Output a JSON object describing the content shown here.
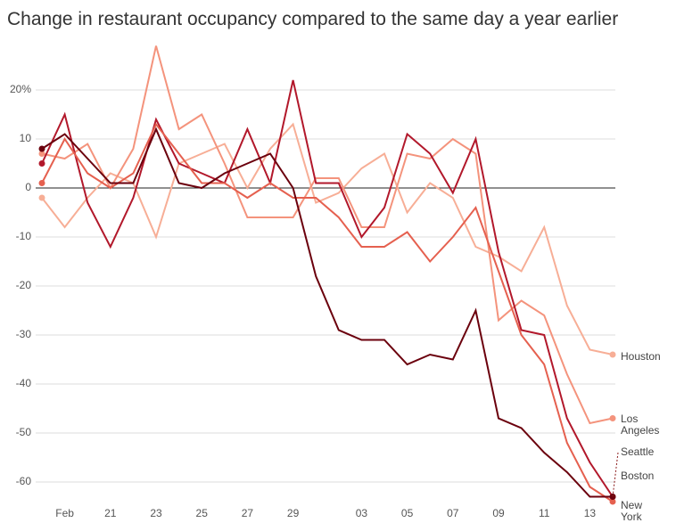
{
  "chart_data": {
    "type": "line",
    "title": "Change in restaurant occupancy compared to the same day a year earlier",
    "categories": [
      null,
      "Feb",
      null,
      "21",
      null,
      "23",
      null,
      "25",
      null,
      "27",
      null,
      "29",
      null,
      null,
      "03",
      null,
      "05",
      null,
      "07",
      null,
      "09",
      null,
      "11",
      null,
      "13",
      null
    ],
    "series": [
      {
        "name": "Houston",
        "color": "#f7ae96",
        "values": [
          -2,
          -8,
          -2,
          3,
          1,
          -10,
          5,
          7,
          9,
          0,
          8,
          13,
          -3,
          -1,
          4,
          7,
          -5,
          1,
          -2,
          -12,
          -14,
          -17,
          -8,
          -24,
          -33,
          -34
        ]
      },
      {
        "name": "Los Angeles",
        "color": "#f4937c",
        "values": [
          7,
          6,
          9,
          0,
          8,
          29,
          12,
          15,
          5,
          -6,
          -6,
          -6,
          2,
          2,
          -8,
          -8,
          7,
          6,
          10,
          7,
          -27,
          -23,
          -26,
          -38,
          -48,
          -47
        ]
      },
      {
        "name": "Seattle",
        "color": "#b2182b",
        "values": [
          5,
          15,
          -3,
          -12,
          -2,
          14,
          5,
          3,
          1,
          12,
          1,
          22,
          1,
          1,
          -10,
          -4,
          11,
          7,
          -1,
          10,
          -13,
          -29,
          -30,
          -47,
          -56,
          -63
        ]
      },
      {
        "name": "Boston",
        "color": "#e5604f",
        "values": [
          1,
          10,
          3,
          0,
          3,
          13,
          7,
          1,
          1,
          -2,
          1,
          -2,
          -2,
          -6,
          -12,
          -12,
          -9,
          -15,
          -10,
          -4,
          -17,
          -30,
          -36,
          -52,
          -61,
          -64
        ]
      },
      {
        "name": "New York",
        "color": "#6b000d",
        "values": [
          8,
          11,
          6,
          1,
          1,
          12,
          1,
          0,
          3,
          5,
          7,
          0,
          -18,
          -29,
          -31,
          -31,
          -36,
          -34,
          -35,
          -25,
          -47,
          -49,
          -54,
          -58,
          -63,
          -63
        ]
      }
    ],
    "ylim": [
      -65,
      30
    ],
    "yticks": [
      {
        "value": 20,
        "label": "20%"
      },
      10,
      0,
      -10,
      -20,
      -30,
      -40,
      -50,
      -60
    ],
    "grid": true
  }
}
